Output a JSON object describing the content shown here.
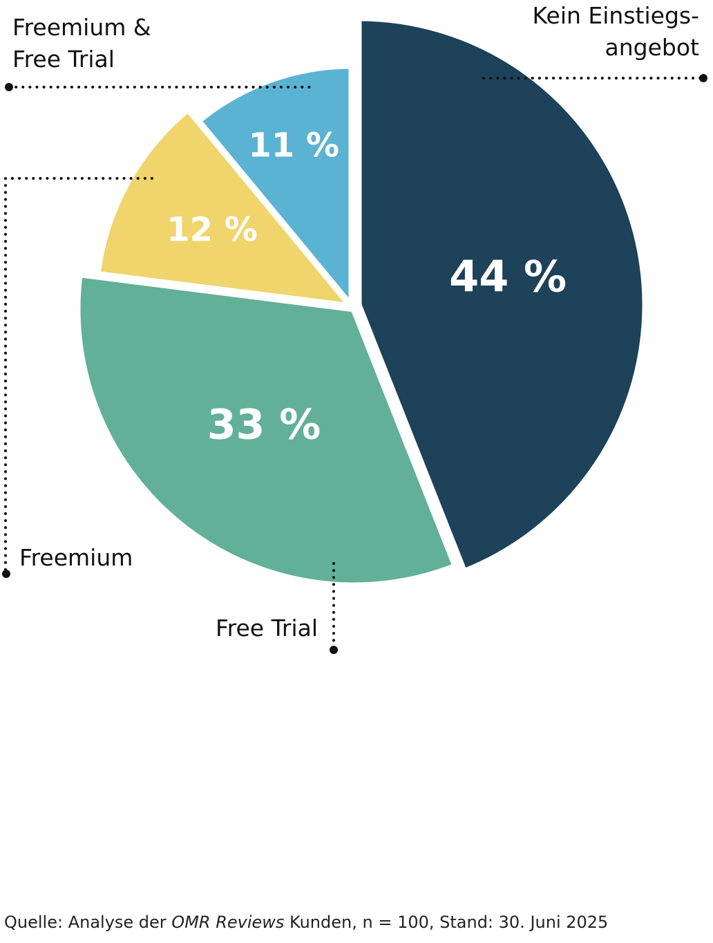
{
  "chart_data": {
    "type": "pie",
    "slices": [
      {
        "label_lines": [
          "Kein Einstiegs-",
          "angebot"
        ],
        "value": 44,
        "value_label": "44 %",
        "color": "#1D4259"
      },
      {
        "label_lines": [
          "Free Trial"
        ],
        "value": 33,
        "value_label": "33 %",
        "color": "#62B098"
      },
      {
        "label_lines": [
          "Freemium"
        ],
        "value": 12,
        "value_label": "12 %",
        "color": "#F0D46C"
      },
      {
        "label_lines": [
          "Freemium &",
          "Free Trial"
        ],
        "value": 11,
        "value_label": "11 %",
        "color": "#5AB3D2"
      }
    ],
    "direction": "clockwise",
    "start": "12 o'clock",
    "exploded": true
  },
  "source": {
    "prefix": "Quelle: Analyse der ",
    "italic": "OMR Reviews",
    "suffix": " Kunden, n = 100, Stand: 30. Juni 2025"
  }
}
